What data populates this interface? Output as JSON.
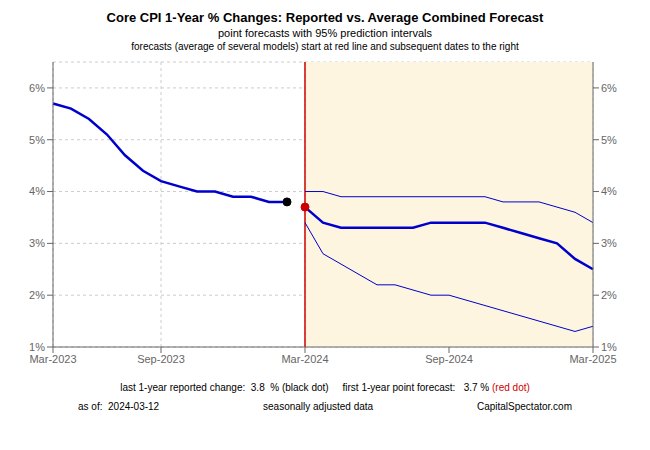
{
  "chart_data": {
    "type": "line",
    "title": "Core CPI 1-Year % Changes: Reported vs. Average Combined Forecast",
    "subtitle": "point forecasts with 95% prediction intervals",
    "annotations": [
      [
        {
          "text": "forecasts (average of several models) start at red line and subsequent dates to the right"
        }
      ],
      [
        {
          "text": "last 1-year reported change:  3.8  % (black dot)     first 1-year point forecast:   3.7 % "
        },
        {
          "text": "(red dot)",
          "color": "#cc0000"
        }
      ],
      [
        {
          "text": "as of:  2024-03-12"
        },
        {
          "text": "seasonally adjusted data"
        },
        {
          "text": "CapitalSpectator.com"
        }
      ]
    ],
    "categories": [
      "Mar-2023",
      null,
      null,
      null,
      null,
      null,
      "Sep-2023",
      null,
      null,
      null,
      null,
      null,
      null,
      null,
      "Mar-2024",
      null,
      null,
      null,
      null,
      null,
      null,
      null,
      "Sep-2024",
      null,
      null,
      null,
      null,
      null,
      null,
      null,
      "Mar-2025"
    ],
    "series": [
      {
        "type": "line",
        "color": "#0000cc",
        "line_style": "thick",
        "values": [
          0.057,
          0.056,
          0.054,
          0.051,
          0.047,
          0.044,
          0.042,
          0.041,
          0.04,
          0.04,
          0.039,
          0.039,
          0.038,
          0.038,
          null,
          null,
          null,
          null,
          null,
          null,
          null,
          null,
          null,
          null,
          null,
          null,
          null,
          null,
          null,
          null,
          null
        ]
      },
      {
        "type": "line",
        "color": "#0000cc",
        "line_style": "thick",
        "values": [
          null,
          null,
          null,
          null,
          null,
          null,
          null,
          null,
          null,
          null,
          null,
          null,
          null,
          null,
          0.037,
          0.034,
          0.033,
          0.033,
          0.033,
          0.033,
          0.033,
          0.034,
          0.034,
          0.034,
          0.034,
          0.033,
          0.032,
          0.031,
          0.03,
          0.027,
          0.025
        ]
      },
      {
        "type": "line",
        "color": "#0000cc",
        "line_style": "thin",
        "values": [
          null,
          null,
          null,
          null,
          null,
          null,
          null,
          null,
          null,
          null,
          null,
          null,
          null,
          null,
          0.04,
          0.04,
          0.039,
          0.039,
          0.039,
          0.039,
          0.039,
          0.039,
          0.039,
          0.039,
          0.039,
          0.038,
          0.038,
          0.038,
          0.037,
          0.036,
          0.034
        ]
      },
      {
        "type": "line",
        "color": "#0000cc",
        "line_style": "thin",
        "values": [
          null,
          null,
          null,
          null,
          null,
          null,
          null,
          null,
          null,
          null,
          null,
          null,
          null,
          null,
          0.034,
          0.028,
          0.026,
          0.024,
          0.022,
          0.022,
          0.021,
          0.02,
          0.02,
          0.019,
          0.018,
          0.017,
          0.016,
          0.015,
          0.014,
          0.013,
          0.014
        ]
      },
      {
        "type": "scatter",
        "marker": "circle",
        "color": "#000000",
        "values": [
          null,
          null,
          null,
          null,
          null,
          null,
          null,
          null,
          null,
          null,
          null,
          null,
          null,
          0.038,
          null,
          null,
          null,
          null,
          null,
          null,
          null,
          null,
          null,
          null,
          null,
          null,
          null,
          null,
          null,
          null,
          null
        ]
      },
      {
        "type": "scatter",
        "marker": "circle",
        "color": "#cc0000",
        "values": [
          null,
          null,
          null,
          null,
          null,
          null,
          null,
          null,
          null,
          null,
          null,
          null,
          null,
          null,
          0.037,
          null,
          null,
          null,
          null,
          null,
          null,
          null,
          null,
          null,
          null,
          null,
          null,
          null,
          null,
          null,
          null
        ]
      }
    ],
    "vline": {
      "x": "Mar-2024",
      "color": "#cc0000"
    },
    "shaded": {
      "from": "Mar-2024",
      "to": "Mar-2025",
      "color": "#fdf5e0"
    },
    "ylim": [
      0.01,
      0.065
    ],
    "yticks": [
      {
        "value": 0.01,
        "label": "1%"
      },
      {
        "value": 0.02,
        "label": "2%"
      },
      {
        "value": 0.03,
        "label": "3%"
      },
      {
        "value": 0.04,
        "label": "4%"
      },
      {
        "value": 0.05,
        "label": "5%"
      },
      {
        "value": 0.06,
        "label": "6%"
      }
    ],
    "y2lim": [
      0.01,
      0.065
    ],
    "y2ticks": [
      {
        "value": 0.01,
        "label": "1%"
      },
      {
        "value": 0.02,
        "label": "2%"
      },
      {
        "value": 0.03,
        "label": "3%"
      },
      {
        "value": 0.04,
        "label": "4%"
      },
      {
        "value": 0.05,
        "label": "5%"
      },
      {
        "value": 0.06,
        "label": "6%"
      }
    ],
    "grid": true
  }
}
